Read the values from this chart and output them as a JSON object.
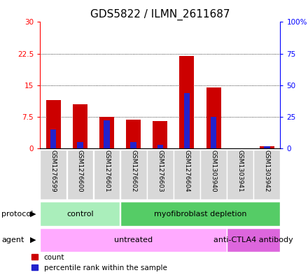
{
  "title": "GDS5822 / ILMN_2611687",
  "samples": [
    "GSM1276599",
    "GSM1276600",
    "GSM1276601",
    "GSM1276602",
    "GSM1276603",
    "GSM1276604",
    "GSM1303940",
    "GSM1303941",
    "GSM1303942"
  ],
  "counts": [
    11.5,
    10.5,
    7.5,
    6.8,
    6.5,
    22.0,
    14.5,
    0.0,
    0.5
  ],
  "percentiles": [
    15,
    5,
    22,
    5,
    3,
    44,
    25,
    0,
    2
  ],
  "ylim_left": [
    0,
    30
  ],
  "ylim_right": [
    0,
    100
  ],
  "yticks_left": [
    0,
    7.5,
    15,
    22.5,
    30
  ],
  "yticks_right": [
    0,
    25,
    50,
    75,
    100
  ],
  "ytick_labels_left": [
    "0",
    "7.5",
    "15",
    "22.5",
    "30"
  ],
  "ytick_labels_right": [
    "0",
    "25",
    "50",
    "75",
    "100%"
  ],
  "bar_color_red": "#cc0000",
  "bar_color_blue": "#2222cc",
  "protocol_groups": [
    {
      "label": "control",
      "start": 0,
      "end": 3,
      "color": "#aaeebb"
    },
    {
      "label": "myofibroblast depletion",
      "start": 3,
      "end": 9,
      "color": "#55cc66"
    }
  ],
  "agent_groups": [
    {
      "label": "untreated",
      "start": 0,
      "end": 7,
      "color": "#ffaaff"
    },
    {
      "label": "anti-CTLA4 antibody",
      "start": 7,
      "end": 9,
      "color": "#dd66dd"
    }
  ],
  "protocol_label": "protocol",
  "agent_label": "agent",
  "sample_bg": "#d8d8d8",
  "plot_bg": "#ffffff",
  "title_fontsize": 11,
  "axis_fontsize": 7.5,
  "annot_fontsize": 8,
  "legend_fontsize": 7.5
}
